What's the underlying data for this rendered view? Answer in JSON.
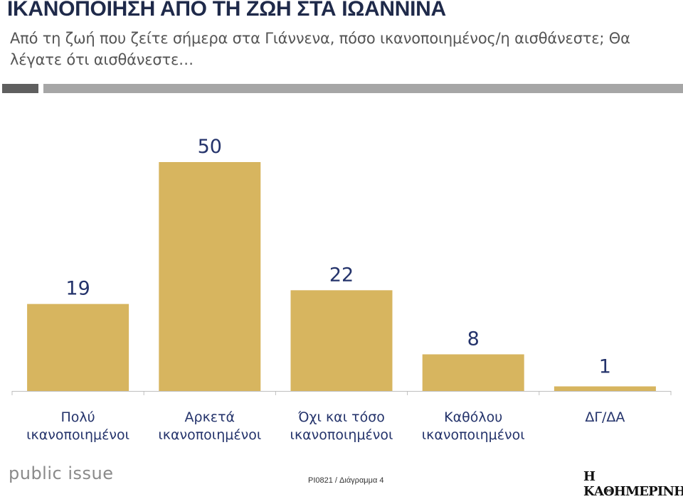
{
  "header": {
    "title": "ΙΚΑΝΟΠΟΙΗΣΗ ΑΠΟ ΤΗ ΖΩΗ ΣΤΑ ΙΩΑΝΝΙΝΑ",
    "subtitle": "Από τη ζωή που ζείτε σήμερα στα Γιάννενα, πόσο ικανοποιημένος/η αισθάνεστε; Θα λέγατε ότι αισθάνεστε…"
  },
  "colors": {
    "bar": "#d7b55f",
    "label": "#24336b",
    "axis": "#bfbfbf"
  },
  "chart_data": {
    "type": "bar",
    "categories": [
      [
        "Πολύ",
        "ικανοποιημένοι"
      ],
      [
        "Αρκετά",
        "ικανοποιημένοι"
      ],
      [
        "Όχι και τόσο",
        "ικανοποιημένοι"
      ],
      [
        "Καθόλου",
        "ικανοποιημένοι"
      ],
      [
        "ΔΓ/ΔΑ"
      ]
    ],
    "values": [
      19,
      50,
      22,
      8,
      1
    ],
    "ylim": [
      0,
      50
    ],
    "grid": false,
    "legend": "none"
  },
  "footer": {
    "brand": "public issue",
    "code": "PI0821 / Διάγραμμα 4",
    "publisher": "Η ΚΑΘΗΜΕΡΙΝΗ"
  }
}
